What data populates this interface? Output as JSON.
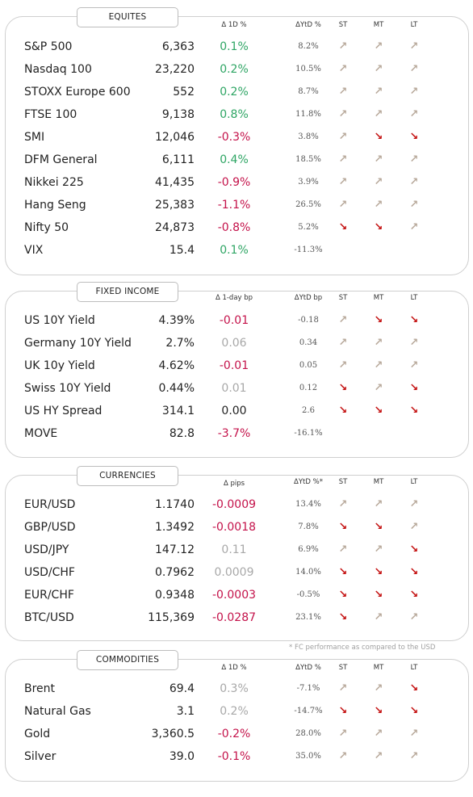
{
  "colors": {
    "positive": "#2ea564",
    "negative": "#c4124a",
    "muted": "#a8a8a8",
    "arrow_up": "#b9aa9c",
    "arrow_down": "#c41212"
  },
  "equities": {
    "title": "EQUITES",
    "headers": {
      "change": "Δ 1D %",
      "ytd": "ΔYtD %",
      "st": "ST",
      "mt": "MT",
      "lt": "LT"
    },
    "rows": [
      {
        "name": "S&P 500",
        "value": "6,363",
        "change": "0.1%",
        "ytd": "8.2%",
        "st": "up",
        "mt": "up",
        "lt": "up",
        "tone": "pos"
      },
      {
        "name": "Nasdaq 100",
        "value": "23,220",
        "change": "0.2%",
        "ytd": "10.5%",
        "st": "up",
        "mt": "up",
        "lt": "up",
        "tone": "pos"
      },
      {
        "name": "STOXX Europe 600",
        "value": "552",
        "change": "0.2%",
        "ytd": "8.7%",
        "st": "up",
        "mt": "up",
        "lt": "up",
        "tone": "pos"
      },
      {
        "name": "FTSE 100",
        "value": "9,138",
        "change": "0.8%",
        "ytd": "11.8%",
        "st": "up",
        "mt": "up",
        "lt": "up",
        "tone": "pos"
      },
      {
        "name": "SMI",
        "value": "12,046",
        "change": "-0.3%",
        "ytd": "3.8%",
        "st": "up",
        "mt": "down",
        "lt": "down",
        "tone": "neg"
      },
      {
        "name": "DFM General",
        "value": "6,111",
        "change": "0.4%",
        "ytd": "18.5%",
        "st": "up",
        "mt": "up",
        "lt": "up",
        "tone": "pos"
      },
      {
        "name": "Nikkei 225",
        "value": "41,435",
        "change": "-0.9%",
        "ytd": "3.9%",
        "st": "up",
        "mt": "up",
        "lt": "up",
        "tone": "neg"
      },
      {
        "name": "Hang Seng",
        "value": "25,383",
        "change": "-1.1%",
        "ytd": "26.5%",
        "st": "up",
        "mt": "up",
        "lt": "up",
        "tone": "neg"
      },
      {
        "name": "Nifty  50",
        "value": "24,873",
        "change": "-0.8%",
        "ytd": "5.2%",
        "st": "down",
        "mt": "down",
        "lt": "up",
        "tone": "neg"
      },
      {
        "name": "VIX",
        "value": "15.4",
        "change": "0.1%",
        "ytd": "-11.3%",
        "st": "",
        "mt": "",
        "lt": "",
        "tone": "pos"
      }
    ]
  },
  "fixed_income": {
    "title": "FIXED INCOME",
    "headers": {
      "change": "Δ 1-day bp",
      "ytd": "ΔYtD bp",
      "st": "ST",
      "mt": "MT",
      "lt": "LT"
    },
    "rows": [
      {
        "name": "US 10Y Yield",
        "value": "4.39%",
        "change": "-0.01",
        "ytd": "-0.18",
        "st": "up",
        "mt": "down",
        "lt": "down",
        "tone": "neg"
      },
      {
        "name": "Germany 10Y Yield",
        "value": "2.7%",
        "change": "0.06",
        "ytd": "0.34",
        "st": "up",
        "mt": "up",
        "lt": "up",
        "tone": "muted"
      },
      {
        "name": "UK 10y Yield",
        "value": "4.62%",
        "change": "-0.01",
        "ytd": "0.05",
        "st": "up",
        "mt": "up",
        "lt": "up",
        "tone": "neg"
      },
      {
        "name": "Swiss 10Y Yield",
        "value": "0.44%",
        "change": "0.01",
        "ytd": "0.12",
        "st": "down",
        "mt": "up",
        "lt": "down",
        "tone": "muted"
      },
      {
        "name": "US HY Spread",
        "value": "314.1",
        "change": "0.00",
        "ytd": "2.6",
        "st": "down",
        "mt": "down",
        "lt": "down",
        "tone": "flat"
      },
      {
        "name": "MOVE",
        "value": "82.8",
        "change": "-3.7%",
        "ytd": "-16.1%",
        "st": "",
        "mt": "",
        "lt": "",
        "tone": "neg"
      }
    ]
  },
  "currencies": {
    "title": "CURRENCIES",
    "headers": {
      "change": "Δ pips",
      "ytd": "ΔYtD %*",
      "st": "ST",
      "mt": "MT",
      "lt": "LT"
    },
    "rows": [
      {
        "name": "EUR/USD",
        "value": "1.1740",
        "change": "-0.0009",
        "ytd": "13.4%",
        "st": "up",
        "mt": "up",
        "lt": "up",
        "tone": "neg"
      },
      {
        "name": "GBP/USD",
        "value": "1.3492",
        "change": "-0.0018",
        "ytd": "7.8%",
        "st": "down",
        "mt": "down",
        "lt": "up",
        "tone": "neg"
      },
      {
        "name": "USD/JPY",
        "value": "147.12",
        "change": "0.11",
        "ytd": "6.9%",
        "st": "up",
        "mt": "up",
        "lt": "down",
        "tone": "muted"
      },
      {
        "name": "USD/CHF",
        "value": "0.7962",
        "change": "0.0009",
        "ytd": "14.0%",
        "st": "down",
        "mt": "down",
        "lt": "down",
        "tone": "muted"
      },
      {
        "name": "EUR/CHF",
        "value": "0.9348",
        "change": "-0.0003",
        "ytd": "-0.5%",
        "st": "down",
        "mt": "down",
        "lt": "down",
        "tone": "neg"
      },
      {
        "name": "BTC/USD",
        "value": "115,369",
        "change": "-0.0287",
        "ytd": "23.1%",
        "st": "down",
        "mt": "up",
        "lt": "up",
        "tone": "neg"
      }
    ],
    "footnote": "* FC performance as compared to the USD"
  },
  "commodities": {
    "title": "COMMODITIES",
    "headers": {
      "change": "Δ 1D %",
      "ytd": "ΔYtD %",
      "st": "ST",
      "mt": "MT",
      "lt": "LT"
    },
    "rows": [
      {
        "name": "Brent",
        "value": "69.4",
        "change": "0.3%",
        "ytd": "-7.1%",
        "st": "up",
        "mt": "up",
        "lt": "down",
        "tone": "muted"
      },
      {
        "name": "Natural Gas",
        "value": "3.1",
        "change": "0.2%",
        "ytd": "-14.7%",
        "st": "down",
        "mt": "down",
        "lt": "down",
        "tone": "muted"
      },
      {
        "name": "Gold",
        "value": "3,360.5",
        "change": "-0.2%",
        "ytd": "28.0%",
        "st": "up",
        "mt": "up",
        "lt": "up",
        "tone": "neg"
      },
      {
        "name": "Silver",
        "value": "39.0",
        "change": "-0.1%",
        "ytd": "35.0%",
        "st": "up",
        "mt": "up",
        "lt": "up",
        "tone": "neg"
      }
    ]
  },
  "icons": {
    "up": "arrow-up-right-icon",
    "down": "arrow-down-right-icon"
  }
}
